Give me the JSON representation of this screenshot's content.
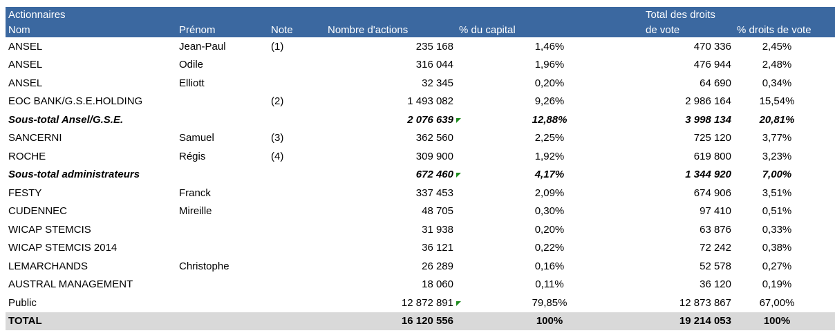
{
  "table": {
    "header": [
      [
        "Actionnaires",
        null,
        null,
        null,
        null,
        "Total des droits",
        null
      ],
      [
        "Nom",
        "Prénom",
        "Note",
        "Nombre d'actions",
        "% du capital",
        "de vote",
        "% droits de vote"
      ]
    ],
    "rows": [
      [
        "ANSEL",
        "Jean-Paul",
        "(1)",
        "235 168",
        "1,46%",
        "470 336",
        "2,45%"
      ],
      [
        "ANSEL",
        "Odile",
        null,
        "316 044",
        "1,96%",
        "476 944",
        "2,48%"
      ],
      [
        "ANSEL",
        "Elliott",
        null,
        "32 345",
        "0,20%",
        "64 690",
        "0,34%"
      ],
      [
        "EOC BANK/G.S.E.HOLDING",
        null,
        "(2)",
        "1 493 082",
        "9,26%",
        "2 986 164",
        "15,54%"
      ],
      [
        "Sous-total Ansel/G.S.E.",
        null,
        null,
        "2 076 639",
        "12,88%",
        "3 998 134",
        "20,81%"
      ],
      [
        "SANCERNI",
        "Samuel",
        "(3)",
        "362 560",
        "2,25%",
        "725 120",
        "3,77%"
      ],
      [
        "ROCHE",
        "Régis",
        "(4)",
        "309 900",
        "1,92%",
        "619 800",
        "3,23%"
      ],
      [
        "Sous-total administrateurs",
        null,
        null,
        "672 460",
        "4,17%",
        "1 344 920",
        "7,00%"
      ],
      [
        "FESTY",
        "Franck",
        null,
        "337 453",
        "2,09%",
        "674 906",
        "3,51%"
      ],
      [
        "CUDENNEC",
        "Mireille",
        null,
        "48 705",
        "0,30%",
        "97 410",
        "0,51%"
      ],
      [
        "WICAP STEMCIS",
        null,
        null,
        "31 938",
        "0,20%",
        "63 876",
        "0,33%"
      ],
      [
        "WICAP STEMCIS 2014",
        null,
        null,
        "36 121",
        "0,22%",
        "72 242",
        "0,38%"
      ],
      [
        "LEMARCHANDS",
        "Christophe",
        null,
        "26 289",
        "0,16%",
        "52 578",
        "0,27%"
      ],
      [
        "AUSTRAL MANAGEMENT",
        null,
        null,
        "18 060",
        "0,11%",
        "36 120",
        "0,19%"
      ],
      [
        "Public",
        null,
        null,
        "12 872 891",
        "79,85%",
        "12 873 867",
        "67,00%"
      ],
      [
        "TOTAL",
        null,
        null,
        "16 120 556",
        "100%",
        "19 214 053",
        "100%"
      ]
    ]
  }
}
